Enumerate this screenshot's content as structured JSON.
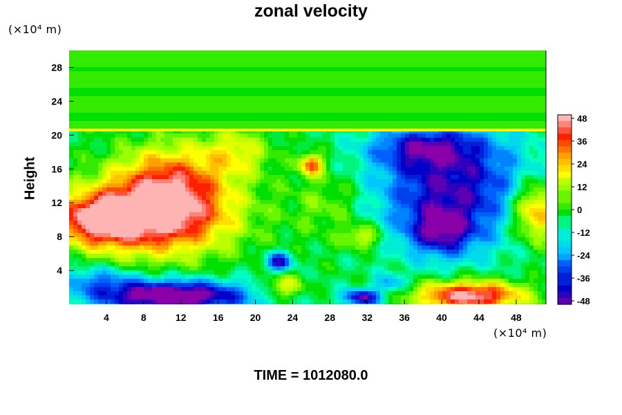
{
  "chart_data": {
    "type": "heatmap",
    "title": "zonal velocity",
    "ylabel": "Height",
    "xlabel": "",
    "x_unit_label": "(×10⁴ m)",
    "y_unit_label": "(×10⁴ m)",
    "x_ticks": [
      4,
      8,
      12,
      16,
      20,
      24,
      28,
      32,
      36,
      40,
      44,
      48
    ],
    "y_ticks": [
      4,
      8,
      12,
      16,
      20,
      24,
      28
    ],
    "xlim": [
      0,
      51.2
    ],
    "ylim": [
      0,
      30
    ],
    "colorbar": {
      "ticks": [
        48,
        36,
        24,
        12,
        0,
        -12,
        -24,
        -36,
        -48
      ],
      "range": [
        -52,
        52
      ],
      "palette": [
        "#8a00a8",
        "#0000c8",
        "#0060ff",
        "#00c8ff",
        "#00ffc0",
        "#00e000",
        "#9aff00",
        "#ffff00",
        "#ffa000",
        "#ff2000",
        "#ffb4b4"
      ]
    },
    "field": {
      "background_value": -3,
      "features": [
        {
          "x": 9.5,
          "y": 10.5,
          "value": 58,
          "sx": 5.5,
          "sy": 3.2
        },
        {
          "x": 11,
          "y": 15,
          "value": 30,
          "sx": 4,
          "sy": 3
        },
        {
          "x": 3,
          "y": 10,
          "value": 45,
          "sx": 3,
          "sy": 2
        },
        {
          "x": 50,
          "y": 11,
          "value": 40,
          "sx": 1.8,
          "sy": 2.5
        },
        {
          "x": 43,
          "y": 1,
          "value": 58,
          "sx": 4,
          "sy": 1.2
        },
        {
          "x": 26,
          "y": 16.5,
          "value": 40,
          "sx": 0.9,
          "sy": 0.9
        },
        {
          "x": 31.5,
          "y": 8,
          "value": 22,
          "sx": 1.5,
          "sy": 1
        },
        {
          "x": 23,
          "y": 2,
          "value": 25,
          "sx": 1.5,
          "sy": 1
        },
        {
          "x": 41,
          "y": 14,
          "value": -42,
          "sx": 6,
          "sy": 5
        },
        {
          "x": 40,
          "y": 8.5,
          "value": -30,
          "sx": 2.5,
          "sy": 2
        },
        {
          "x": 38,
          "y": 18.5,
          "value": -25,
          "sx": 4,
          "sy": 1.5
        },
        {
          "x": 11,
          "y": 1,
          "value": -60,
          "sx": 6,
          "sy": 1.3
        },
        {
          "x": 3,
          "y": 3,
          "value": -20,
          "sx": 3,
          "sy": 1.2
        },
        {
          "x": 22.5,
          "y": 5,
          "value": -40,
          "sx": 1,
          "sy": 0.8
        },
        {
          "x": 31.5,
          "y": 0.8,
          "value": -45,
          "sx": 1.5,
          "sy": 0.7
        },
        {
          "x": 34.5,
          "y": 2.5,
          "value": -20,
          "sx": 1.2,
          "sy": 0.8
        },
        {
          "x": 18,
          "y": 18,
          "value": 20,
          "sx": 2.5,
          "sy": 2
        },
        {
          "x": 28,
          "y": 12,
          "value": 12,
          "sx": 3,
          "sy": 3
        }
      ]
    }
  },
  "footer": {
    "time_label": "TIME = 1012080.0"
  }
}
